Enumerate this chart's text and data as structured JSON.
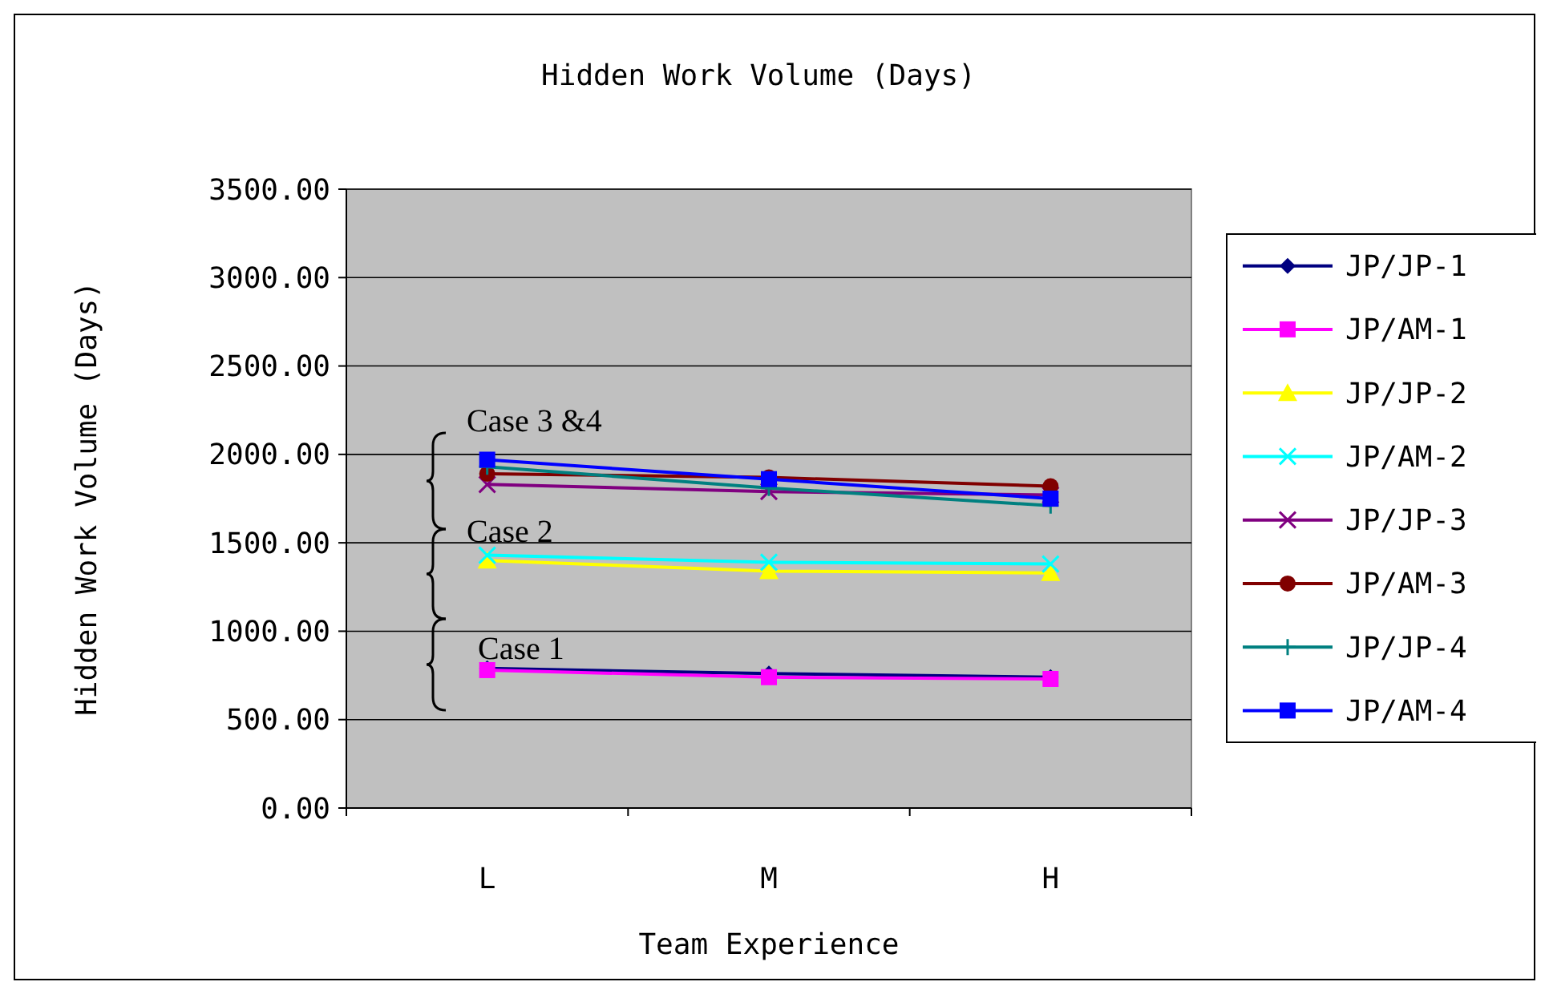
{
  "chart_data": {
    "type": "line",
    "title": "Hidden Work Volume (Days)",
    "xlabel": "Team Experience",
    "ylabel": "Hidden Work Volume (Days)",
    "categories": [
      "L",
      "M",
      "H"
    ],
    "ylim": [
      0,
      3500
    ],
    "yticks": [
      {
        "value": 0,
        "label": "0.00"
      },
      {
        "value": 500,
        "label": "500.00"
      },
      {
        "value": 1000,
        "label": "1000.00"
      },
      {
        "value": 1500,
        "label": "1500.00"
      },
      {
        "value": 2000,
        "label": "2000.00"
      },
      {
        "value": 2500,
        "label": "2500.00"
      },
      {
        "value": 3000,
        "label": "3000.00"
      },
      {
        "value": 3500,
        "label": "3500.00"
      }
    ],
    "grid": "y",
    "legend": "right",
    "series": [
      {
        "name": "JP/JP-1",
        "color": "#000080",
        "marker": "diamond",
        "values": [
          790,
          760,
          740
        ]
      },
      {
        "name": "JP/AM-1",
        "color": "#ff00ff",
        "marker": "square",
        "values": [
          780,
          740,
          730
        ]
      },
      {
        "name": "JP/JP-2",
        "color": "#ffff00",
        "marker": "triangle",
        "values": [
          1400,
          1340,
          1330
        ]
      },
      {
        "name": "JP/AM-2",
        "color": "#00ffff",
        "marker": "cross",
        "values": [
          1430,
          1390,
          1380
        ]
      },
      {
        "name": "JP/JP-3",
        "color": "#800080",
        "marker": "cross",
        "values": [
          1830,
          1790,
          1770
        ]
      },
      {
        "name": "JP/AM-3",
        "color": "#800000",
        "marker": "circle",
        "values": [
          1890,
          1870,
          1820
        ]
      },
      {
        "name": "JP/JP-4",
        "color": "#008080",
        "marker": "plus",
        "values": [
          1930,
          1810,
          1710
        ]
      },
      {
        "name": "JP/AM-4",
        "color": "#0000ff",
        "marker": "square",
        "values": [
          1970,
          1860,
          1750
        ]
      }
    ],
    "annotations": [
      "Case 3 &4",
      "Case 2",
      "Case 1"
    ]
  }
}
